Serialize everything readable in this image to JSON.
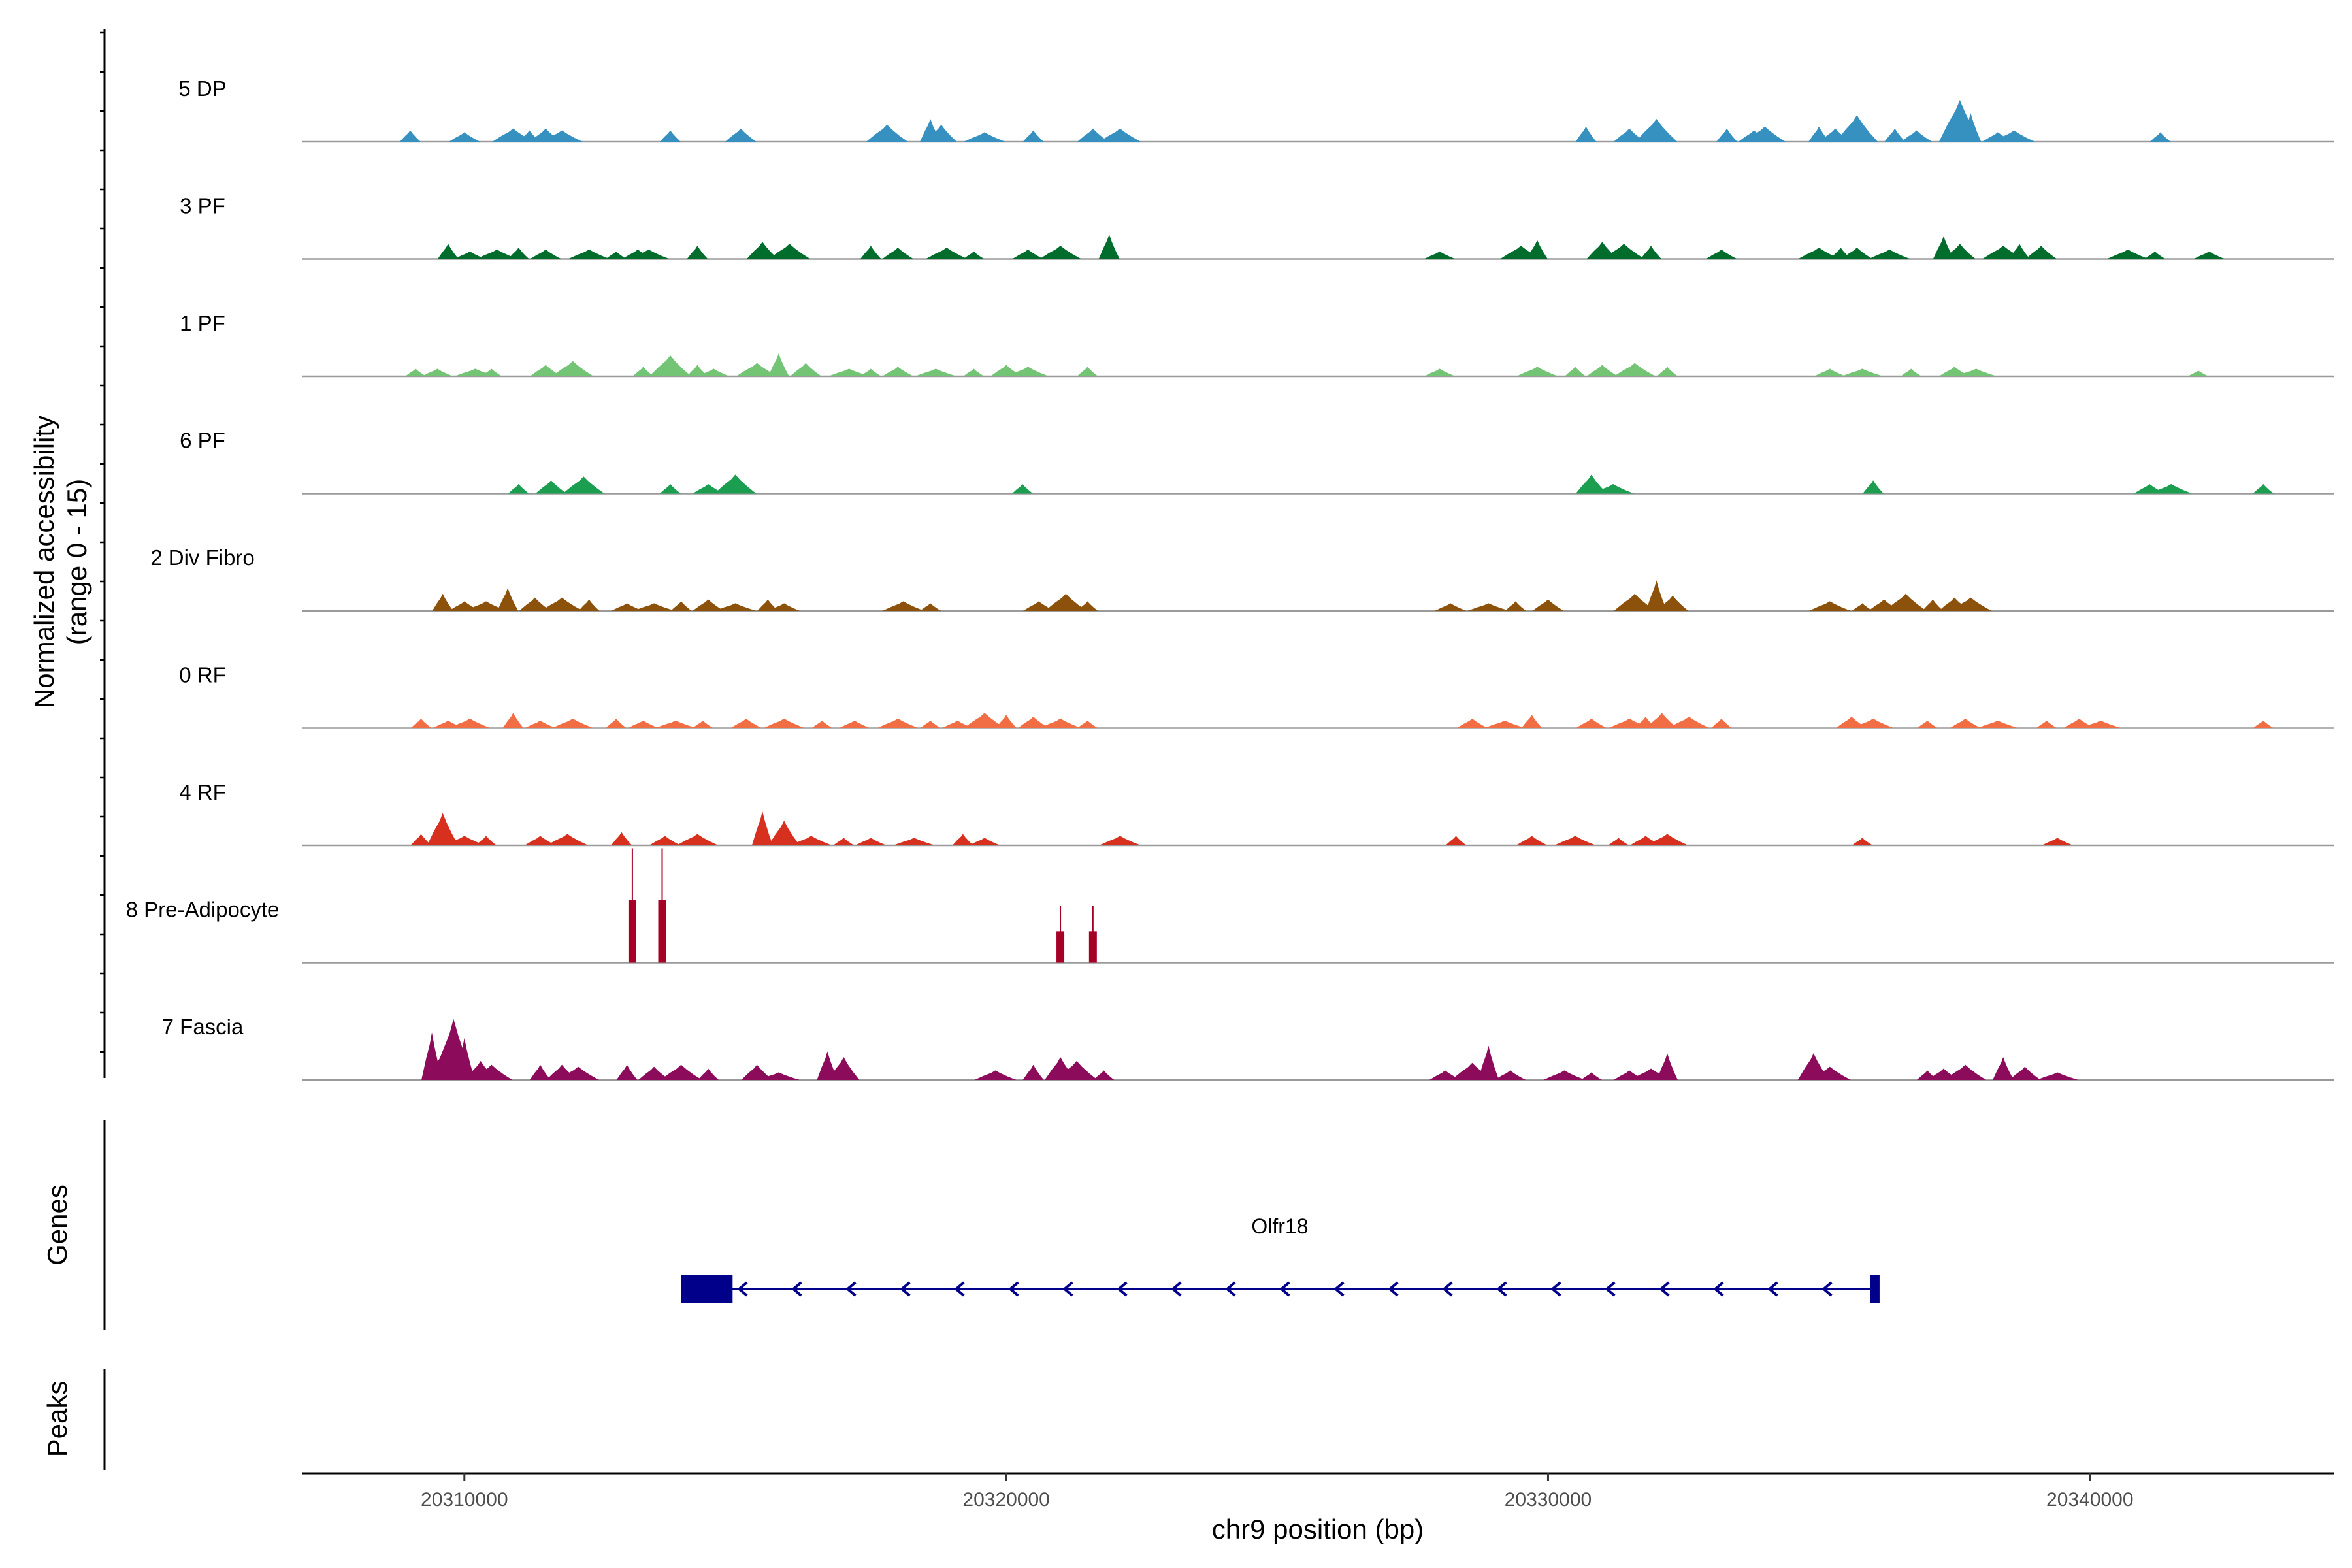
{
  "chart_data": {
    "type": "coverage-track",
    "region": "chr9:20307000-20344500",
    "x_range": [
      20307000,
      20344500
    ],
    "xlabel": "chr9 position (bp)",
    "x_ticks": [
      "20310000",
      "20320000",
      "20330000",
      "20340000"
    ],
    "x_tick_values": [
      20310000,
      20320000,
      20330000,
      20340000
    ],
    "ylabel_line1": "Normalized accessibility",
    "ylabel_line2": "(range 0 - 15)",
    "y_range": [
      0,
      15
    ],
    "gene_panel_label": "Genes",
    "peaks_panel_label": "Peaks",
    "gene": {
      "name": "Olfr18",
      "strand": "-",
      "start": 20314000,
      "end": 20336100,
      "thick_start": 20314000,
      "thick_end": 20314950,
      "utr_block": [
        20335950,
        20336100
      ],
      "color": "#00008b"
    },
    "tracks": [
      {
        "name": "5 DP",
        "color": "#3690c0",
        "peaks": [
          [
            20309000,
            6
          ],
          [
            20310000,
            5
          ],
          [
            20310900,
            7
          ],
          [
            20311200,
            6
          ],
          [
            20311500,
            7
          ],
          [
            20311800,
            6
          ],
          [
            20313800,
            6
          ],
          [
            20315100,
            7
          ],
          [
            20317800,
            9
          ],
          [
            20318600,
            12
          ],
          [
            20318800,
            9
          ],
          [
            20319600,
            5
          ],
          [
            20320500,
            6
          ],
          [
            20321600,
            7
          ],
          [
            20322100,
            7
          ],
          [
            20330700,
            8
          ],
          [
            20331500,
            7
          ],
          [
            20332000,
            12
          ],
          [
            20333300,
            7
          ],
          [
            20333800,
            6
          ],
          [
            20334000,
            8
          ],
          [
            20335000,
            8
          ],
          [
            20335300,
            7
          ],
          [
            20335700,
            14
          ],
          [
            20336400,
            7
          ],
          [
            20336800,
            6
          ],
          [
            20337600,
            22
          ],
          [
            20337800,
            15
          ],
          [
            20338300,
            5
          ],
          [
            20338600,
            6
          ],
          [
            20341300,
            5
          ]
        ]
      },
      {
        "name": "3 PF",
        "color": "#006d2c",
        "peaks": [
          [
            20309700,
            8
          ],
          [
            20310100,
            4
          ],
          [
            20310600,
            5
          ],
          [
            20311000,
            6
          ],
          [
            20311500,
            5
          ],
          [
            20312300,
            5
          ],
          [
            20312800,
            4
          ],
          [
            20313200,
            5
          ],
          [
            20313400,
            5
          ],
          [
            20314300,
            7
          ],
          [
            20315500,
            9
          ],
          [
            20316000,
            8
          ],
          [
            20317500,
            7
          ],
          [
            20318000,
            6
          ],
          [
            20318900,
            6
          ],
          [
            20319400,
            4
          ],
          [
            20320400,
            5
          ],
          [
            20321000,
            7
          ],
          [
            20321900,
            13
          ],
          [
            20328000,
            4
          ],
          [
            20329500,
            7
          ],
          [
            20329800,
            10
          ],
          [
            20331000,
            9
          ],
          [
            20331400,
            8
          ],
          [
            20331900,
            7
          ],
          [
            20333200,
            5
          ],
          [
            20335000,
            6
          ],
          [
            20335400,
            6
          ],
          [
            20335700,
            6
          ],
          [
            20336300,
            5
          ],
          [
            20337300,
            12
          ],
          [
            20337600,
            8
          ],
          [
            20338400,
            7
          ],
          [
            20338700,
            8
          ],
          [
            20339100,
            7
          ],
          [
            20340700,
            5
          ],
          [
            20341200,
            4
          ],
          [
            20342200,
            4
          ]
        ]
      },
      {
        "name": "1 PF",
        "color": "#74c476",
        "peaks": [
          [
            20309100,
            4
          ],
          [
            20309500,
            4
          ],
          [
            20310200,
            4
          ],
          [
            20310500,
            4
          ],
          [
            20311500,
            6
          ],
          [
            20312000,
            8
          ],
          [
            20313300,
            5
          ],
          [
            20313700,
            6
          ],
          [
            20313800,
            11
          ],
          [
            20314300,
            6
          ],
          [
            20314600,
            4
          ],
          [
            20315400,
            7
          ],
          [
            20315800,
            12
          ],
          [
            20316300,
            7
          ],
          [
            20317100,
            4
          ],
          [
            20317500,
            4
          ],
          [
            20318000,
            5
          ],
          [
            20318700,
            4
          ],
          [
            20319400,
            4
          ],
          [
            20320000,
            6
          ],
          [
            20320400,
            5
          ],
          [
            20321500,
            5
          ],
          [
            20328000,
            4
          ],
          [
            20329800,
            5
          ],
          [
            20330500,
            5
          ],
          [
            20331000,
            6
          ],
          [
            20331600,
            7
          ],
          [
            20332200,
            5
          ],
          [
            20335200,
            4
          ],
          [
            20335800,
            4
          ],
          [
            20336700,
            4
          ],
          [
            20337500,
            5
          ],
          [
            20337900,
            4
          ],
          [
            20342000,
            3
          ]
        ]
      },
      {
        "name": "6 PF",
        "color": "#1b9e50",
        "peaks": [
          [
            20311000,
            5
          ],
          [
            20311600,
            7
          ],
          [
            20312200,
            9
          ],
          [
            20313800,
            5
          ],
          [
            20314500,
            5
          ],
          [
            20315000,
            10
          ],
          [
            20320300,
            5
          ],
          [
            20330800,
            10
          ],
          [
            20331200,
            5
          ],
          [
            20336000,
            7
          ],
          [
            20341100,
            5
          ],
          [
            20341500,
            5
          ],
          [
            20343200,
            5
          ]
        ]
      },
      {
        "name": "2 Div Fibro",
        "color": "#8c510a",
        "peaks": [
          [
            20309600,
            9
          ],
          [
            20310000,
            5
          ],
          [
            20310400,
            5
          ],
          [
            20310800,
            12
          ],
          [
            20311300,
            7
          ],
          [
            20311800,
            7
          ],
          [
            20312300,
            6
          ],
          [
            20313000,
            4
          ],
          [
            20313500,
            4
          ],
          [
            20314000,
            5
          ],
          [
            20314500,
            6
          ],
          [
            20315000,
            4
          ],
          [
            20315600,
            6
          ],
          [
            20315900,
            4
          ],
          [
            20318100,
            5
          ],
          [
            20318600,
            4
          ],
          [
            20320600,
            5
          ],
          [
            20321100,
            9
          ],
          [
            20321500,
            5
          ],
          [
            20328200,
            4
          ],
          [
            20328900,
            4
          ],
          [
            20329400,
            5
          ],
          [
            20330000,
            6
          ],
          [
            20331600,
            9
          ],
          [
            20332000,
            16
          ],
          [
            20332300,
            8
          ],
          [
            20335200,
            5
          ],
          [
            20335800,
            4
          ],
          [
            20336200,
            6
          ],
          [
            20336600,
            9
          ],
          [
            20337100,
            6
          ],
          [
            20337500,
            7
          ],
          [
            20337800,
            7
          ]
        ]
      },
      {
        "name": "0 RF",
        "color": "#f16d43",
        "peaks": [
          [
            20309200,
            5
          ],
          [
            20309700,
            4
          ],
          [
            20310100,
            5
          ],
          [
            20310900,
            8
          ],
          [
            20311400,
            4
          ],
          [
            20312000,
            5
          ],
          [
            20312800,
            5
          ],
          [
            20313300,
            4
          ],
          [
            20313900,
            4
          ],
          [
            20314400,
            4
          ],
          [
            20315200,
            5
          ],
          [
            20315900,
            5
          ],
          [
            20316600,
            4
          ],
          [
            20317200,
            4
          ],
          [
            20318000,
            5
          ],
          [
            20318600,
            4
          ],
          [
            20319100,
            4
          ],
          [
            20319600,
            8
          ],
          [
            20320000,
            7
          ],
          [
            20320500,
            6
          ],
          [
            20321000,
            5
          ],
          [
            20321500,
            4
          ],
          [
            20328600,
            5
          ],
          [
            20329200,
            4
          ],
          [
            20329700,
            7
          ],
          [
            20330800,
            5
          ],
          [
            20331500,
            5
          ],
          [
            20331800,
            6
          ],
          [
            20332100,
            8
          ],
          [
            20332600,
            6
          ],
          [
            20333200,
            5
          ],
          [
            20335600,
            6
          ],
          [
            20336000,
            5
          ],
          [
            20337000,
            4
          ],
          [
            20337700,
            5
          ],
          [
            20338300,
            4
          ],
          [
            20339200,
            4
          ],
          [
            20339800,
            5
          ],
          [
            20340200,
            4
          ],
          [
            20343200,
            4
          ]
        ]
      },
      {
        "name": "4 RF",
        "color": "#d7301f",
        "peaks": [
          [
            20309200,
            6
          ],
          [
            20309600,
            17
          ],
          [
            20310000,
            5
          ],
          [
            20310400,
            5
          ],
          [
            20311400,
            5
          ],
          [
            20311900,
            6
          ],
          [
            20312900,
            7
          ],
          [
            20313700,
            5
          ],
          [
            20314300,
            6
          ],
          [
            20315500,
            18
          ],
          [
            20315900,
            13
          ],
          [
            20316400,
            5
          ],
          [
            20317000,
            4
          ],
          [
            20317500,
            4
          ],
          [
            20318300,
            4
          ],
          [
            20319200,
            6
          ],
          [
            20319600,
            4
          ],
          [
            20322100,
            5
          ],
          [
            20328300,
            5
          ],
          [
            20329700,
            5
          ],
          [
            20330500,
            5
          ],
          [
            20331300,
            4
          ],
          [
            20331800,
            5
          ],
          [
            20332200,
            6
          ],
          [
            20335800,
            4
          ],
          [
            20339400,
            4
          ]
        ]
      },
      {
        "name": "8 Pre-Adipocyte",
        "color": "#a50026",
        "peaks": [
          [
            20313100,
            60
          ],
          [
            20313650,
            60
          ],
          [
            20321000,
            30
          ],
          [
            20321600,
            30
          ]
        ]
      },
      {
        "name": "7 Fascia",
        "color": "#8c0b5a",
        "peaks": [
          [
            20309400,
            25
          ],
          [
            20309600,
            15
          ],
          [
            20309800,
            32
          ],
          [
            20310000,
            22
          ],
          [
            20310300,
            10
          ],
          [
            20310500,
            8
          ],
          [
            20311400,
            8
          ],
          [
            20311800,
            8
          ],
          [
            20312100,
            7
          ],
          [
            20313000,
            8
          ],
          [
            20313500,
            7
          ],
          [
            20314000,
            8
          ],
          [
            20314500,
            6
          ],
          [
            20315400,
            8
          ],
          [
            20315800,
            4
          ],
          [
            20316700,
            15
          ],
          [
            20317000,
            12
          ],
          [
            20319800,
            5
          ],
          [
            20320500,
            8
          ],
          [
            20321000,
            12
          ],
          [
            20321300,
            10
          ],
          [
            20321800,
            5
          ],
          [
            20328100,
            5
          ],
          [
            20328600,
            9
          ],
          [
            20328900,
            18
          ],
          [
            20329300,
            5
          ],
          [
            20330300,
            5
          ],
          [
            20330800,
            4
          ],
          [
            20331500,
            5
          ],
          [
            20331900,
            6
          ],
          [
            20332200,
            14
          ],
          [
            20334900,
            14
          ],
          [
            20335200,
            7
          ],
          [
            20337000,
            5
          ],
          [
            20337300,
            6
          ],
          [
            20337700,
            8
          ],
          [
            20338400,
            12
          ],
          [
            20338800,
            7
          ],
          [
            20339400,
            4
          ]
        ]
      }
    ]
  }
}
